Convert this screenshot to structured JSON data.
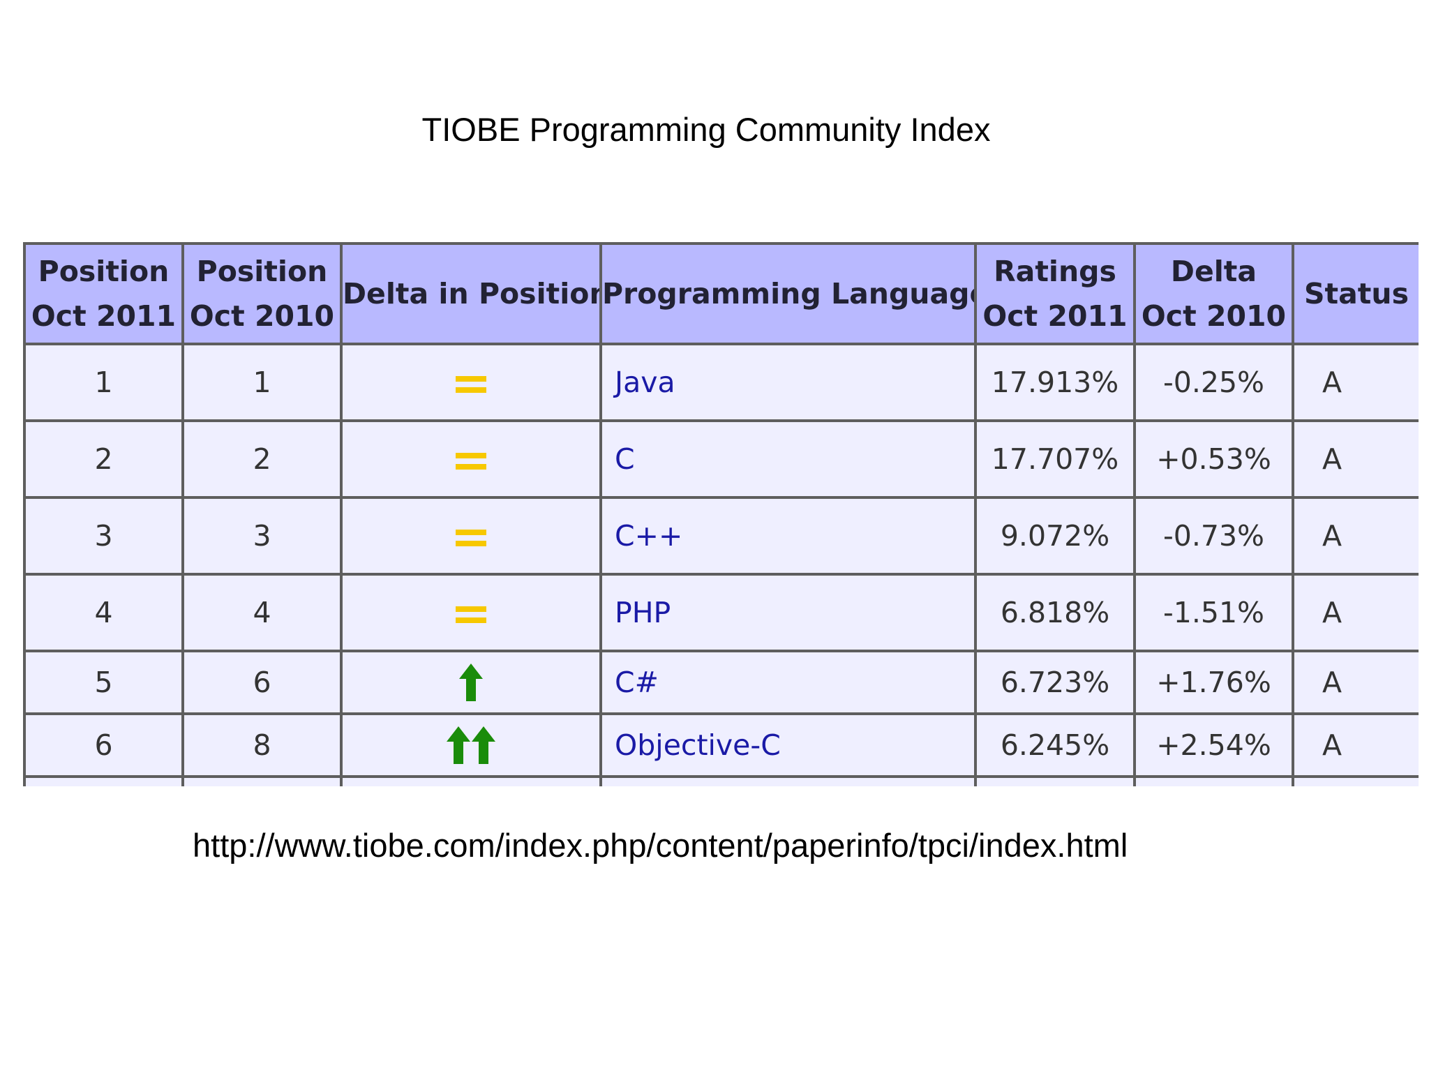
{
  "title": "TIOBE Programming Community Index",
  "table": {
    "headers": [
      {
        "line1": "Position",
        "line2": "Oct 2011"
      },
      {
        "line1": "Position",
        "line2": "Oct 2010"
      },
      {
        "line1": "Delta in Position",
        "line2": ""
      },
      {
        "line1": "Programming Language",
        "line2": ""
      },
      {
        "line1": "Ratings",
        "line2": "Oct 2011"
      },
      {
        "line1": "Delta",
        "line2": "Oct 2010"
      },
      {
        "line1": "Status",
        "line2": ""
      }
    ],
    "rows": [
      {
        "pos2011": "1",
        "pos2010": "1",
        "delta_icon": "equal-icon",
        "language": "Java",
        "rating": "17.913%",
        "delta": "-0.25%",
        "status": "A"
      },
      {
        "pos2011": "2",
        "pos2010": "2",
        "delta_icon": "equal-icon",
        "language": "C",
        "rating": "17.707%",
        "delta": "+0.53%",
        "status": "A"
      },
      {
        "pos2011": "3",
        "pos2010": "3",
        "delta_icon": "equal-icon",
        "language": "C++",
        "rating": "9.072%",
        "delta": "-0.73%",
        "status": "A"
      },
      {
        "pos2011": "4",
        "pos2010": "4",
        "delta_icon": "equal-icon",
        "language": "PHP",
        "rating": "6.818%",
        "delta": "-1.51%",
        "status": "A"
      },
      {
        "pos2011": "5",
        "pos2010": "6",
        "delta_icon": "arrow-up-icon",
        "language": "C#",
        "rating": "6.723%",
        "delta": "+1.76%",
        "status": "A"
      },
      {
        "pos2011": "6",
        "pos2010": "8",
        "delta_icon": "double-arrow-up-icon",
        "language": "Objective-C",
        "rating": "6.245%",
        "delta": "+2.54%",
        "status": "A"
      }
    ]
  },
  "source_url": "http://www.tiobe.com/index.php/content/paperinfo/tpci/index.html",
  "colors": {
    "header_bg": "#b9b9ff",
    "cell_bg": "#efefff",
    "grid": "#5e5e5e",
    "language_link": "#1a1aa6",
    "equal_icon": "#f7c800",
    "arrow_icon": "#1a8c0a"
  }
}
